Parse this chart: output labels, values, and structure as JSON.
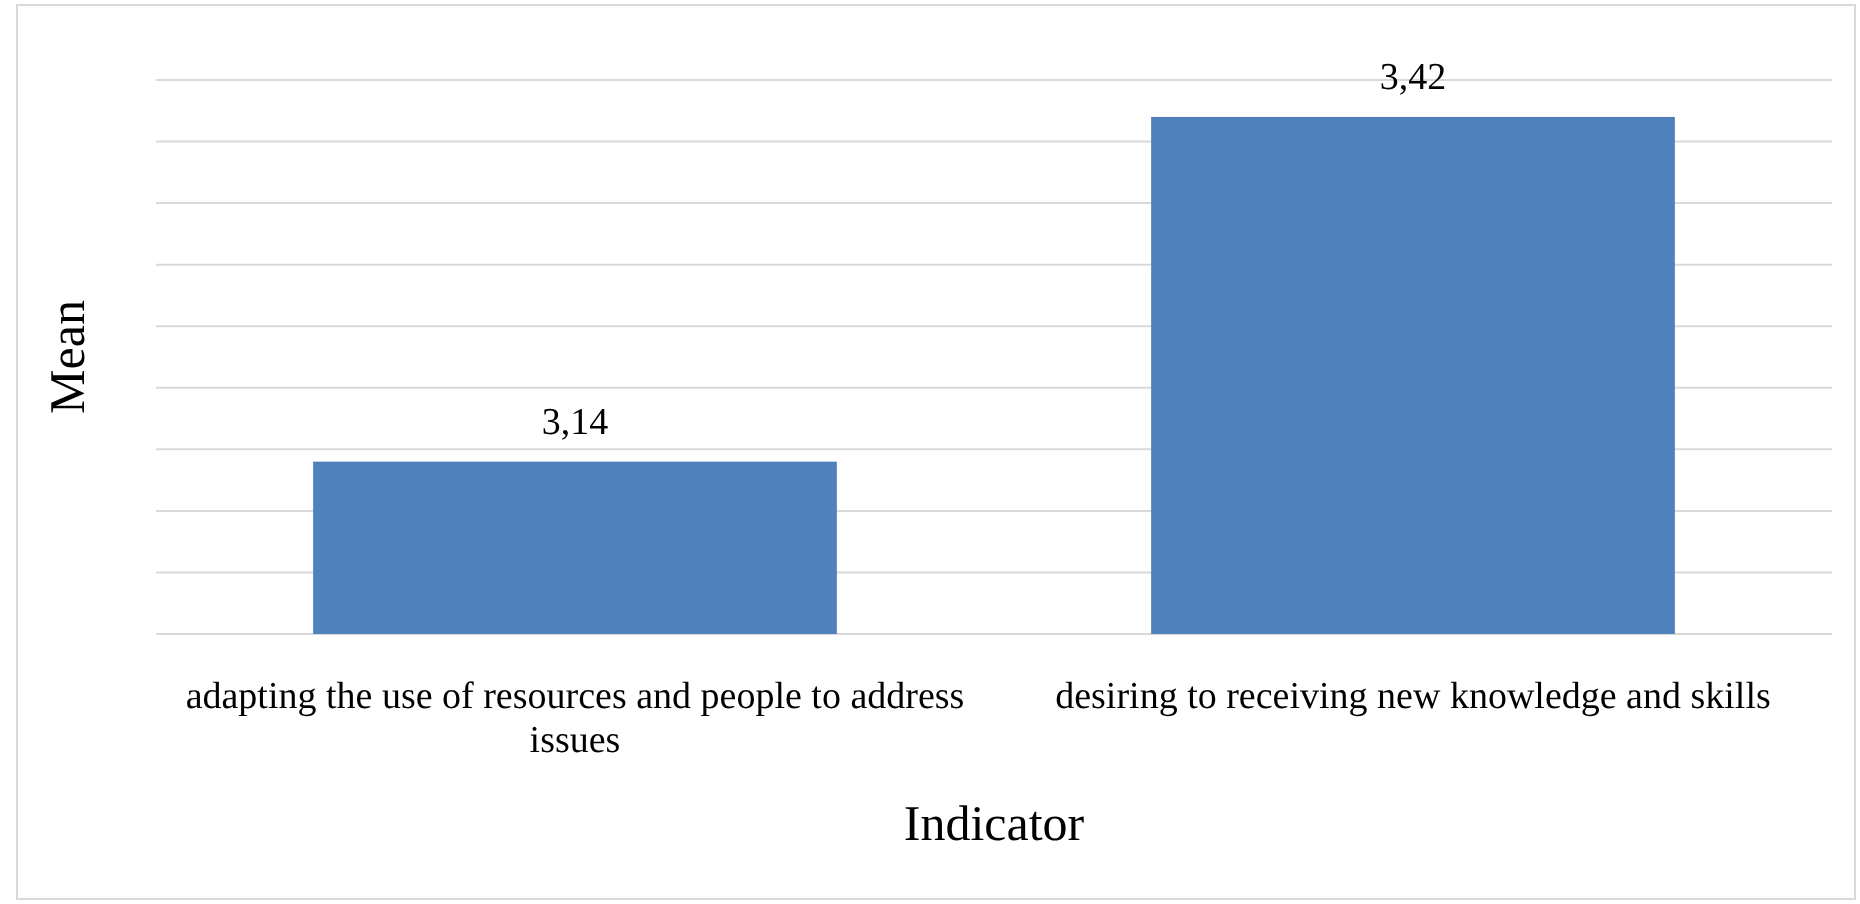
{
  "chart_data": {
    "type": "bar",
    "xlabel": "Indicator",
    "ylabel": "Mean",
    "categories": [
      "adapting the use of resources and people to address issues",
      "desiring to receiving new knowledge and skills"
    ],
    "values": [
      3.14,
      3.42
    ],
    "color": "#4f81bd",
    "value_labels": [
      "3,14",
      "3,42"
    ],
    "ylim": [
      3,
      3.45
    ],
    "yticks": [
      {
        "value": 3,
        "label": null
      },
      {
        "value": 3.05,
        "label": null
      },
      {
        "value": 3.1,
        "label": null
      },
      {
        "value": 3.15,
        "label": null
      },
      {
        "value": 3.2,
        "label": null
      },
      {
        "value": 3.25,
        "label": null
      },
      {
        "value": 3.3,
        "label": null
      },
      {
        "value": 3.35,
        "label": null
      },
      {
        "value": 3.4,
        "label": null
      },
      {
        "value": 3.45,
        "label": null
      }
    ],
    "grid": "y",
    "tick_labels": "x"
  }
}
